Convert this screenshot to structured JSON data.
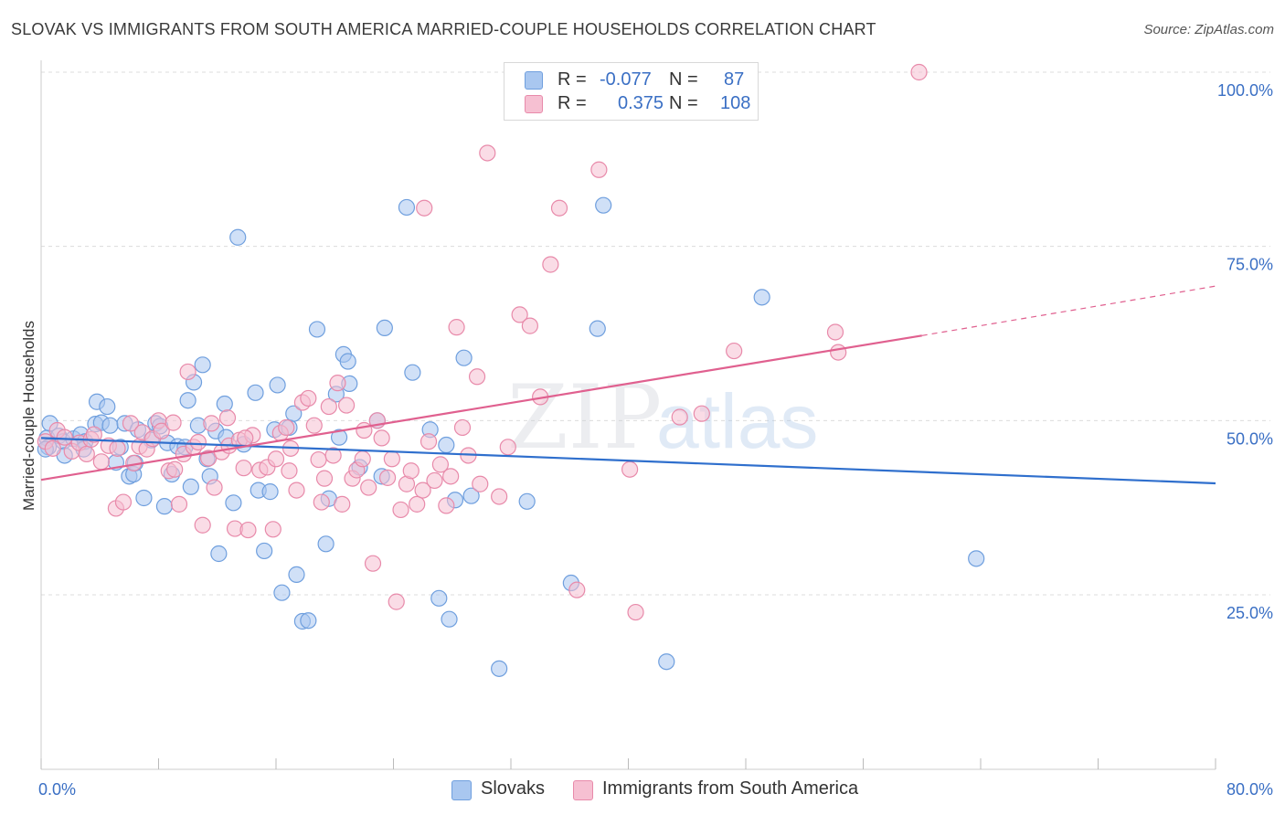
{
  "title": "SLOVAK VS IMMIGRANTS FROM SOUTH AMERICA MARRIED-COUPLE HOUSEHOLDS CORRELATION CHART",
  "source": "Source: ZipAtlas.com",
  "watermark": {
    "zip": "ZIP",
    "atlas": "atlas"
  },
  "legend": {
    "r_label": "R =",
    "n_label": "N =",
    "rows": [
      {
        "r": "-0.077",
        "n": "87",
        "color": "#a9c7f0",
        "border": "#6f9fde"
      },
      {
        "r": "0.375",
        "n": "108",
        "color": "#f6c0d2",
        "border": "#e88aaa"
      }
    ]
  },
  "bottom_legend": [
    {
      "label": "Slovaks",
      "color": "#a9c7f0",
      "border": "#6f9fde"
    },
    {
      "label": "Immigrants from South America",
      "color": "#f6c0d2",
      "border": "#e88aaa"
    }
  ],
  "chart_data": {
    "type": "scatter",
    "title": "SLOVAK VS IMMIGRANTS FROM SOUTH AMERICA MARRIED-COUPLE HOUSEHOLDS CORRELATION CHART",
    "xlabel": "",
    "ylabel": "Married-couple Households",
    "xlim": [
      0,
      80
    ],
    "ylim": [
      0,
      105
    ],
    "x_tick_labels": [
      "0.0%",
      "80.0%"
    ],
    "y_ticks": [
      25,
      50,
      75,
      100
    ],
    "y_tick_labels": [
      "25.0%",
      "50.0%",
      "75.0%",
      "100.0%"
    ],
    "grid": true,
    "legend_position": "top-center",
    "series": [
      {
        "name": "Slovaks",
        "color": "#6f9fde",
        "fill": "#a9c7f0",
        "trend": {
          "x": [
            0,
            80
          ],
          "y": [
            47.5,
            41.0
          ],
          "color": "#2f6fcd"
        },
        "points": [
          [
            0.4,
            47.5
          ],
          [
            0.6,
            49.6
          ],
          [
            0.5,
            46.2
          ],
          [
            1.2,
            47.8
          ],
          [
            1.5,
            47.0
          ],
          [
            1.6,
            45.0
          ],
          [
            2.2,
            47.4
          ],
          [
            2.7,
            48.0
          ],
          [
            3.0,
            47.0
          ],
          [
            2.9,
            45.9
          ],
          [
            3.7,
            49.5
          ],
          [
            3.8,
            52.7
          ],
          [
            4.1,
            49.7
          ],
          [
            4.5,
            52.0
          ],
          [
            4.7,
            49.3
          ],
          [
            5.1,
            44.0
          ],
          [
            5.4,
            46.2
          ],
          [
            5.7,
            49.6
          ],
          [
            6.0,
            42.0
          ],
          [
            6.3,
            42.3
          ],
          [
            6.4,
            43.9
          ],
          [
            6.6,
            48.7
          ],
          [
            7.0,
            38.9
          ],
          [
            7.5,
            47.2
          ],
          [
            7.8,
            49.6
          ],
          [
            8.1,
            49.2
          ],
          [
            8.4,
            37.7
          ],
          [
            8.6,
            46.8
          ],
          [
            8.9,
            42.3
          ],
          [
            9.3,
            46.3
          ],
          [
            9.8,
            46.2
          ],
          [
            10.0,
            52.9
          ],
          [
            10.2,
            40.5
          ],
          [
            10.4,
            55.5
          ],
          [
            10.7,
            49.3
          ],
          [
            11.0,
            58.0
          ],
          [
            11.3,
            44.5
          ],
          [
            11.5,
            42.0
          ],
          [
            11.9,
            48.5
          ],
          [
            12.1,
            30.9
          ],
          [
            12.5,
            52.4
          ],
          [
            12.6,
            47.6
          ],
          [
            13.1,
            38.2
          ],
          [
            13.4,
            76.3
          ],
          [
            13.8,
            46.6
          ],
          [
            14.6,
            54.0
          ],
          [
            14.8,
            40.0
          ],
          [
            15.2,
            31.3
          ],
          [
            15.6,
            39.8
          ],
          [
            15.9,
            48.7
          ],
          [
            16.1,
            55.1
          ],
          [
            16.4,
            25.3
          ],
          [
            16.9,
            49.0
          ],
          [
            17.2,
            51.0
          ],
          [
            17.4,
            27.9
          ],
          [
            17.8,
            21.2
          ],
          [
            18.2,
            21.3
          ],
          [
            18.8,
            63.1
          ],
          [
            19.4,
            32.3
          ],
          [
            19.6,
            38.8
          ],
          [
            20.1,
            53.8
          ],
          [
            20.3,
            47.6
          ],
          [
            20.6,
            59.5
          ],
          [
            21.0,
            55.3
          ],
          [
            20.9,
            58.5
          ],
          [
            21.7,
            43.3
          ],
          [
            22.9,
            50.0
          ],
          [
            23.2,
            42.0
          ],
          [
            23.4,
            63.3
          ],
          [
            24.9,
            80.6
          ],
          [
            25.3,
            56.9
          ],
          [
            26.5,
            48.7
          ],
          [
            27.1,
            24.5
          ],
          [
            27.6,
            46.5
          ],
          [
            27.8,
            21.5
          ],
          [
            28.2,
            38.6
          ],
          [
            28.8,
            59.0
          ],
          [
            29.3,
            39.2
          ],
          [
            31.2,
            14.4
          ],
          [
            33.1,
            38.4
          ],
          [
            36.1,
            26.7
          ],
          [
            37.9,
            63.2
          ],
          [
            38.3,
            80.9
          ],
          [
            42.6,
            15.4
          ],
          [
            49.1,
            67.7
          ],
          [
            63.7,
            30.2
          ],
          [
            0.3,
            45.9
          ]
        ]
      },
      {
        "name": "Immigrants from South America",
        "color": "#e88aaa",
        "fill": "#f6c0d2",
        "trend": {
          "x": [
            0,
            60
          ],
          "y": [
            41.5,
            62.2
          ],
          "dashed_x": [
            60,
            80
          ],
          "dashed_y": [
            62.2,
            69.3
          ],
          "color": "#e0608f"
        },
        "points": [
          [
            0.3,
            47.0
          ],
          [
            0.8,
            46.0
          ],
          [
            1.1,
            48.6
          ],
          [
            1.6,
            47.6
          ],
          [
            2.1,
            45.6
          ],
          [
            2.6,
            46.8
          ],
          [
            3.1,
            45.2
          ],
          [
            3.4,
            47.3
          ],
          [
            3.6,
            48.0
          ],
          [
            4.1,
            44.1
          ],
          [
            4.6,
            46.4
          ],
          [
            5.1,
            37.4
          ],
          [
            5.6,
            38.3
          ],
          [
            5.2,
            46.0
          ],
          [
            6.1,
            49.6
          ],
          [
            6.3,
            43.9
          ],
          [
            6.7,
            46.3
          ],
          [
            6.9,
            48.3
          ],
          [
            7.2,
            45.9
          ],
          [
            7.6,
            47.4
          ],
          [
            8.0,
            50.0
          ],
          [
            8.2,
            48.5
          ],
          [
            8.7,
            42.8
          ],
          [
            9.1,
            43.0
          ],
          [
            9.4,
            38.0
          ],
          [
            9.0,
            49.7
          ],
          [
            9.7,
            45.2
          ],
          [
            10.0,
            57.0
          ],
          [
            10.4,
            46.2
          ],
          [
            10.7,
            46.9
          ],
          [
            11.0,
            35.0
          ],
          [
            11.4,
            44.6
          ],
          [
            11.8,
            40.4
          ],
          [
            11.6,
            49.6
          ],
          [
            12.3,
            45.5
          ],
          [
            12.8,
            46.4
          ],
          [
            13.2,
            34.5
          ],
          [
            13.5,
            47.2
          ],
          [
            13.8,
            43.2
          ],
          [
            14.1,
            34.3
          ],
          [
            14.4,
            47.9
          ],
          [
            14.9,
            42.9
          ],
          [
            15.4,
            43.3
          ],
          [
            15.8,
            34.4
          ],
          [
            16.0,
            44.5
          ],
          [
            16.3,
            48.2
          ],
          [
            16.7,
            49.0
          ],
          [
            16.9,
            42.8
          ],
          [
            17.4,
            40.0
          ],
          [
            17.8,
            52.6
          ],
          [
            18.2,
            53.2
          ],
          [
            18.6,
            49.3
          ],
          [
            18.9,
            44.4
          ],
          [
            19.3,
            41.7
          ],
          [
            19.6,
            52.0
          ],
          [
            19.9,
            45.0
          ],
          [
            20.2,
            55.4
          ],
          [
            20.5,
            38.0
          ],
          [
            20.8,
            52.2
          ],
          [
            21.2,
            41.7
          ],
          [
            21.5,
            42.9
          ],
          [
            22.0,
            48.6
          ],
          [
            22.3,
            40.4
          ],
          [
            22.6,
            29.5
          ],
          [
            22.9,
            50.0
          ],
          [
            23.2,
            47.5
          ],
          [
            23.6,
            41.8
          ],
          [
            23.9,
            44.5
          ],
          [
            24.2,
            24.0
          ],
          [
            24.5,
            37.2
          ],
          [
            24.9,
            40.9
          ],
          [
            25.2,
            42.8
          ],
          [
            25.6,
            38.0
          ],
          [
            26.0,
            40.0
          ],
          [
            26.4,
            47.0
          ],
          [
            26.8,
            41.4
          ],
          [
            27.2,
            43.7
          ],
          [
            27.6,
            37.8
          ],
          [
            27.9,
            42.0
          ],
          [
            28.3,
            63.4
          ],
          [
            28.7,
            49.0
          ],
          [
            29.1,
            45.0
          ],
          [
            29.7,
            56.3
          ],
          [
            29.9,
            40.9
          ],
          [
            30.4,
            88.4
          ],
          [
            31.2,
            39.1
          ],
          [
            31.8,
            46.2
          ],
          [
            32.6,
            65.2
          ],
          [
            33.3,
            63.6
          ],
          [
            34.0,
            53.4
          ],
          [
            34.7,
            72.4
          ],
          [
            35.3,
            80.5
          ],
          [
            36.5,
            25.7
          ],
          [
            38.0,
            86.0
          ],
          [
            40.1,
            43.0
          ],
          [
            40.5,
            22.5
          ],
          [
            43.5,
            50.5
          ],
          [
            45.0,
            51.0
          ],
          [
            47.2,
            60.0
          ],
          [
            54.1,
            62.7
          ],
          [
            54.3,
            59.8
          ],
          [
            59.8,
            100.0
          ],
          [
            12.7,
            50.4
          ],
          [
            13.9,
            47.5
          ],
          [
            17.0,
            46.0
          ],
          [
            19.1,
            38.3
          ],
          [
            21.9,
            44.5
          ],
          [
            26.1,
            80.5
          ]
        ]
      }
    ]
  }
}
